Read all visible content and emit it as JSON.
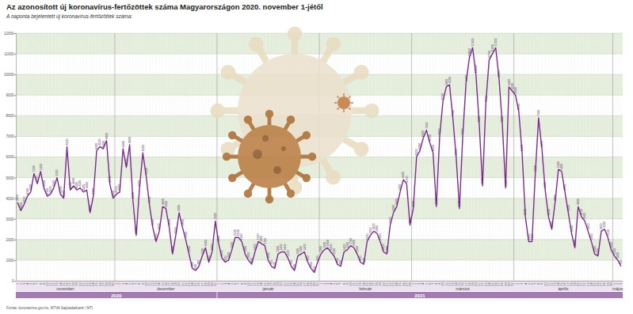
{
  "chart_data": {
    "type": "line",
    "title": "Az azonosított új koronavírus-fertőzöttek száma Magyarországon 2020. november 1-jétől",
    "subtitle": "A naponta bejelentett új koronavírus-fertőzöttek száma:",
    "source": "Forrás: koronavirus.gov.hu, MTVA Sajtóadatbank / MTI",
    "color": "#7b2d8e",
    "grid": true,
    "data_labels": true,
    "categories": [
      "1",
      "2",
      "3",
      "4",
      "5",
      "6",
      "7",
      "8",
      "9",
      "10",
      "11",
      "12",
      "13",
      "14",
      "15",
      "16",
      "17",
      "18",
      "19",
      "20",
      "21",
      "22",
      "23",
      "24",
      "25",
      "26",
      "27",
      "28",
      "29",
      "30",
      "1",
      "2",
      "3",
      "4",
      "5",
      "6",
      "7",
      "8",
      "9",
      "10",
      "11",
      "12",
      "13",
      "14",
      "15",
      "16",
      "17",
      "18",
      "19",
      "20",
      "21",
      "22",
      "23",
      "24",
      "25",
      "26",
      "27",
      "28",
      "29",
      "30",
      "31",
      "1",
      "2",
      "3",
      "4",
      "5",
      "6",
      "7",
      "8",
      "9",
      "10",
      "11",
      "12",
      "13",
      "14",
      "15",
      "16",
      "17",
      "18",
      "19",
      "20",
      "21",
      "22",
      "23",
      "24",
      "25",
      "26",
      "27",
      "28",
      "29",
      "30",
      "31",
      "1",
      "2",
      "3",
      "4",
      "5",
      "6",
      "7",
      "8",
      "9",
      "10",
      "11",
      "12",
      "13",
      "14",
      "15",
      "16",
      "17",
      "18",
      "19",
      "20",
      "21",
      "22",
      "23",
      "24",
      "25",
      "26",
      "27",
      "28",
      "1",
      "2",
      "3",
      "4",
      "5",
      "6",
      "7",
      "8",
      "9",
      "10",
      "11",
      "12",
      "13",
      "14",
      "15",
      "16",
      "17",
      "18",
      "19",
      "20",
      "21",
      "22",
      "23",
      "24",
      "25",
      "26",
      "27",
      "28",
      "29",
      "30",
      "31",
      "1",
      "2",
      "3",
      "4",
      "5",
      "6",
      "7",
      "8",
      "9",
      "10",
      "11",
      "12",
      "13",
      "14",
      "15",
      "16",
      "17",
      "18",
      "19",
      "20",
      "21",
      "22",
      "23",
      "24",
      "25",
      "26",
      "27",
      "28",
      "29",
      "30",
      "1",
      "2",
      "3"
    ],
    "values": [
      3800,
      3400,
      3700,
      4100,
      4300,
      5200,
      4700,
      5300,
      4500,
      4100,
      4200,
      4500,
      5000,
      4200,
      4000,
      6500,
      4400,
      4600,
      4400,
      4500,
      4300,
      4400,
      3300,
      4100,
      6300,
      6500,
      6400,
      6800,
      4700,
      4000,
      4200,
      4300,
      6400,
      5500,
      6600,
      3900,
      2200,
      4500,
      6200,
      5100,
      3700,
      2600,
      1900,
      2400,
      3600,
      3500,
      2600,
      1300,
      2200,
      3300,
      2600,
      2000,
      1300,
      600,
      500,
      700,
      1200,
      1600,
      900,
      1400,
      2900,
      1800,
      1100,
      900,
      1000,
      1500,
      2100,
      2100,
      1900,
      1300,
      1000,
      800,
      1400,
      1900,
      1800,
      1700,
      1000,
      700,
      600,
      1300,
      1400,
      1400,
      1100,
      700,
      500,
      1200,
      1300,
      1400,
      900,
      600,
      400,
      900,
      1300,
      1500,
      1600,
      1400,
      1200,
      800,
      700,
      1400,
      1500,
      1700,
      1600,
      1300,
      900,
      800,
      1900,
      2200,
      2400,
      2300,
      1900,
      1400,
      1300,
      2700,
      3300,
      3600,
      4300,
      4900,
      4700,
      2700,
      3500,
      6000,
      6300,
      6900,
      7300,
      6700,
      6200,
      3600,
      7000,
      8700,
      9400,
      9500,
      7900,
      6000,
      3500,
      7000,
      9600,
      10800,
      11300,
      10000,
      7600,
      4600,
      8600,
      10700,
      11000,
      11300,
      9800,
      7600,
      4500,
      9400,
      9200,
      9000,
      8200,
      6200,
      3100,
      1900,
      1900,
      5200,
      7900,
      6400,
      4400,
      3100,
      2500,
      3800,
      5400,
      5300,
      4300,
      3300,
      2300,
      1600,
      3600,
      3100,
      2900,
      2400,
      1900,
      1300,
      1200,
      2400,
      2500,
      2100,
      1500,
      1200,
      1000,
      700
    ],
    "months": [
      "november",
      "december",
      "január",
      "február",
      "március",
      "április",
      "május"
    ],
    "years": [
      {
        "label": "2020",
        "months": 2
      },
      {
        "label": "2021",
        "months": 5
      }
    ],
    "ylim": [
      0,
      12000
    ],
    "yticks": [
      0,
      1000,
      2000,
      3000,
      4000,
      5000,
      6000,
      7000,
      8000,
      9000,
      10000,
      11000,
      12000
    ]
  }
}
